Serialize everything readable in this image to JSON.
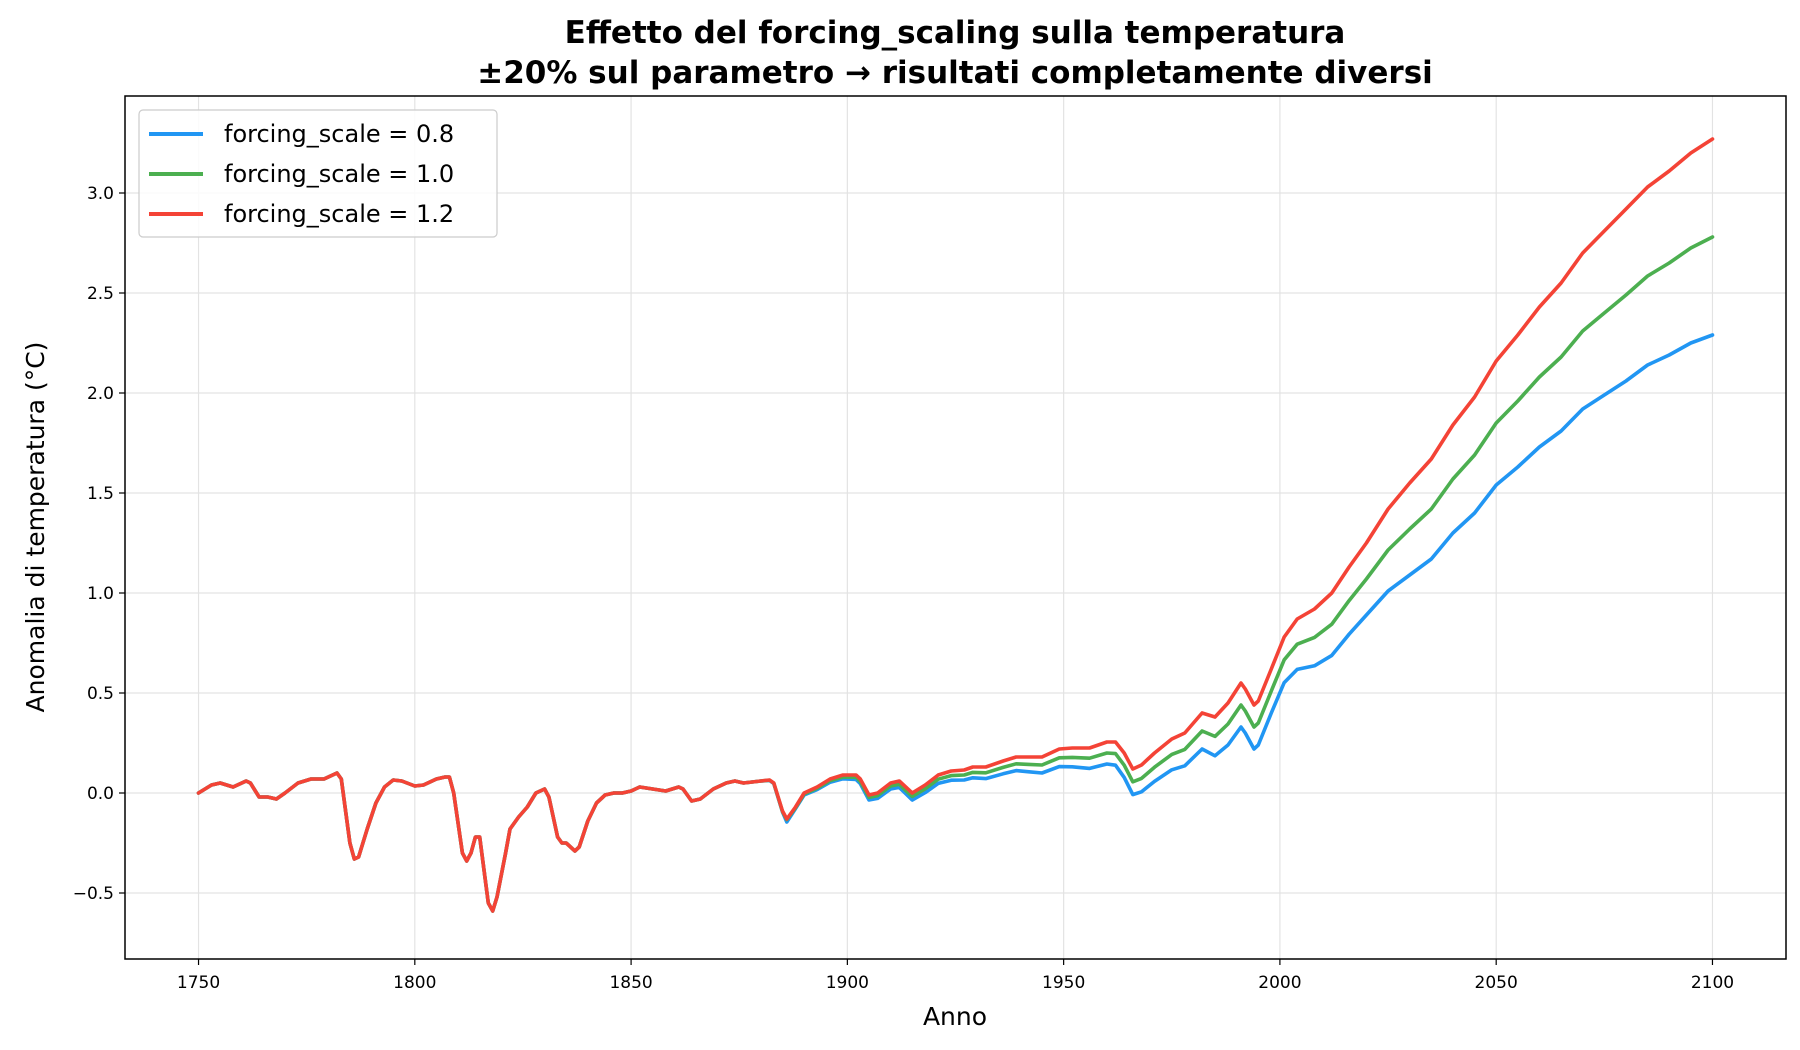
{
  "chart_data": {
    "type": "line",
    "title": "Effetto del forcing_scaling sulla temperatura",
    "subtitle": "±20% sul parametro → risultati completamente diversi",
    "xlabel": "Anno",
    "ylabel": "Anomalia di temperatura (°C)",
    "xlim": [
      1733,
      2117
    ],
    "ylim": [
      -0.83,
      3.485
    ],
    "xticks": [
      1750,
      1800,
      1850,
      1900,
      1950,
      2000,
      2050,
      2100
    ],
    "yticks": [
      -0.5,
      0.0,
      0.5,
      1.0,
      1.5,
      2.0,
      2.5,
      3.0
    ],
    "ytick_labels": [
      "−0.5",
      "0.0",
      "0.5",
      "1.0",
      "1.5",
      "2.0",
      "2.5",
      "3.0"
    ],
    "grid": true,
    "legend_position": "top-left",
    "x": [
      1750,
      1753,
      1755,
      1758,
      1761,
      1762,
      1764,
      1766,
      1768,
      1770,
      1773,
      1776,
      1779,
      1782,
      1783,
      1785,
      1786,
      1787,
      1789,
      1791,
      1793,
      1795,
      1797,
      1800,
      1802,
      1805,
      1807,
      1808,
      1809,
      1811,
      1812,
      1813,
      1814,
      1815,
      1817,
      1818,
      1819,
      1821,
      1822,
      1824,
      1826,
      1828,
      1830,
      1831,
      1833,
      1834,
      1835,
      1837,
      1838,
      1840,
      1842,
      1844,
      1846,
      1848,
      1850,
      1852,
      1855,
      1858,
      1861,
      1862,
      1864,
      1866,
      1869,
      1872,
      1874,
      1876,
      1880,
      1882,
      1883,
      1885,
      1886,
      1888,
      1890,
      1893,
      1896,
      1899,
      1902,
      1903,
      1905,
      1907,
      1910,
      1912,
      1913,
      1915,
      1918,
      1921,
      1924,
      1927,
      1929,
      1932,
      1936,
      1939,
      1942,
      1945,
      1949,
      1952,
      1956,
      1960,
      1962,
      1964,
      1966,
      1968,
      1971,
      1975,
      1978,
      1982,
      1985,
      1988,
      1991,
      1992,
      1994,
      1995,
      1998,
      2001,
      2004,
      2008,
      2012,
      2016,
      2020,
      2025,
      2030,
      2035,
      2040,
      2045,
      2050,
      2055,
      2060,
      2065,
      2070,
      2075,
      2080,
      2085,
      2090,
      2095,
      2100
    ],
    "series": [
      {
        "name": "forcing_scale = 0.8",
        "color": "#2196F3",
        "values": [
          0,
          0.04,
          0.05,
          0.03,
          0.06,
          0.05,
          -0.02,
          -0.02,
          -0.03,
          0,
          0.05,
          0.07,
          0.07,
          0.1,
          0.07,
          -0.25,
          -0.33,
          -0.32,
          -0.18,
          -0.05,
          0.03,
          0.065,
          0.06,
          0.035,
          0.04,
          0.07,
          0.08,
          0.08,
          0,
          -0.3,
          -0.34,
          -0.3,
          -0.22,
          -0.22,
          -0.55,
          -0.59,
          -0.52,
          -0.3,
          -0.18,
          -0.12,
          -0.07,
          0,
          0.02,
          -0.02,
          -0.22,
          -0.25,
          -0.25,
          -0.29,
          -0.27,
          -0.14,
          -0.05,
          -0.01,
          0,
          0,
          0.01,
          0.03,
          0.02,
          0.01,
          0.03,
          0.02,
          -0.04,
          -0.03,
          0.02,
          0.05,
          0.06,
          0.05,
          0.06,
          0.063,
          0.047,
          -0.095,
          -0.145,
          -0.078,
          -0.01,
          0.017,
          0.054,
          0.071,
          0.068,
          0.047,
          -0.035,
          -0.027,
          0.02,
          0.028,
          0.007,
          -0.035,
          0.002,
          0.048,
          0.064,
          0.065,
          0.076,
          0.072,
          0.096,
          0.112,
          0.106,
          0.1,
          0.132,
          0.131,
          0.123,
          0.145,
          0.139,
          0.078,
          -0.008,
          0.006,
          0.058,
          0.116,
          0.136,
          0.22,
          0.186,
          0.24,
          0.33,
          0.3,
          0.22,
          0.24,
          0.4,
          0.552,
          0.618,
          0.636,
          0.688,
          0.794,
          0.89,
          1.01,
          1.09,
          1.17,
          1.3,
          1.4,
          1.54,
          1.63,
          1.73,
          1.81,
          1.92,
          1.99,
          2.06,
          2.14,
          2.19,
          2.25,
          2.29
        ]
      },
      {
        "name": "forcing_scale = 1.0",
        "color": "#4CAF50",
        "values": [
          0,
          0.04,
          0.05,
          0.03,
          0.06,
          0.05,
          -0.02,
          -0.02,
          -0.03,
          0,
          0.05,
          0.07,
          0.07,
          0.1,
          0.07,
          -0.25,
          -0.33,
          -0.32,
          -0.18,
          -0.05,
          0.03,
          0.065,
          0.06,
          0.035,
          0.04,
          0.07,
          0.08,
          0.08,
          0,
          -0.3,
          -0.34,
          -0.3,
          -0.22,
          -0.22,
          -0.55,
          -0.59,
          -0.52,
          -0.3,
          -0.18,
          -0.12,
          -0.07,
          0,
          0.02,
          -0.02,
          -0.22,
          -0.25,
          -0.25,
          -0.29,
          -0.27,
          -0.14,
          -0.05,
          -0.01,
          0,
          0,
          0.01,
          0.03,
          0.02,
          0.01,
          0.03,
          0.02,
          -0.04,
          -0.03,
          0.02,
          0.05,
          0.06,
          0.05,
          0.06,
          0.064,
          0.049,
          -0.093,
          -0.133,
          -0.074,
          -0.005,
          0.024,
          0.062,
          0.08,
          0.079,
          0.058,
          -0.022,
          -0.013,
          0.035,
          0.044,
          0.023,
          -0.017,
          0.021,
          0.069,
          0.087,
          0.09,
          0.103,
          0.101,
          0.128,
          0.146,
          0.143,
          0.14,
          0.176,
          0.178,
          0.174,
          0.2,
          0.197,
          0.139,
          0.056,
          0.073,
          0.129,
          0.193,
          0.218,
          0.31,
          0.283,
          0.345,
          0.44,
          0.41,
          0.33,
          0.35,
          0.51,
          0.666,
          0.744,
          0.778,
          0.844,
          0.962,
          1.07,
          1.215,
          1.32,
          1.42,
          1.57,
          1.69,
          1.85,
          1.96,
          2.08,
          2.18,
          2.31,
          2.4,
          2.49,
          2.585,
          2.65,
          2.725,
          2.78
        ]
      },
      {
        "name": "forcing_scale = 1.2",
        "color": "#F44336",
        "values": [
          0,
          0.04,
          0.05,
          0.03,
          0.06,
          0.05,
          -0.02,
          -0.02,
          -0.03,
          0,
          0.05,
          0.07,
          0.07,
          0.1,
          0.07,
          -0.25,
          -0.33,
          -0.32,
          -0.18,
          -0.05,
          0.03,
          0.065,
          0.06,
          0.035,
          0.04,
          0.07,
          0.08,
          0.08,
          0,
          -0.3,
          -0.34,
          -0.3,
          -0.22,
          -0.22,
          -0.55,
          -0.59,
          -0.52,
          -0.3,
          -0.18,
          -0.12,
          -0.07,
          0,
          0.02,
          -0.02,
          -0.22,
          -0.25,
          -0.25,
          -0.29,
          -0.27,
          -0.14,
          -0.05,
          -0.01,
          0,
          0,
          0.01,
          0.03,
          0.02,
          0.01,
          0.03,
          0.02,
          -0.04,
          -0.03,
          0.02,
          0.05,
          0.06,
          0.05,
          0.06,
          0.065,
          0.05,
          -0.09,
          -0.13,
          -0.07,
          0,
          0.03,
          0.07,
          0.09,
          0.09,
          0.07,
          -0.01,
          0,
          0.05,
          0.06,
          0.04,
          0,
          0.04,
          0.09,
          0.11,
          0.115,
          0.13,
          0.13,
          0.16,
          0.18,
          0.18,
          0.18,
          0.22,
          0.225,
          0.225,
          0.255,
          0.255,
          0.2,
          0.12,
          0.14,
          0.2,
          0.27,
          0.3,
          0.4,
          0.38,
          0.45,
          0.55,
          0.52,
          0.44,
          0.46,
          0.62,
          0.78,
          0.87,
          0.92,
          1.0,
          1.13,
          1.25,
          1.42,
          1.55,
          1.67,
          1.84,
          1.98,
          2.16,
          2.29,
          2.43,
          2.55,
          2.7,
          2.81,
          2.92,
          3.03,
          3.11,
          3.2,
          3.27
        ]
      }
    ]
  }
}
